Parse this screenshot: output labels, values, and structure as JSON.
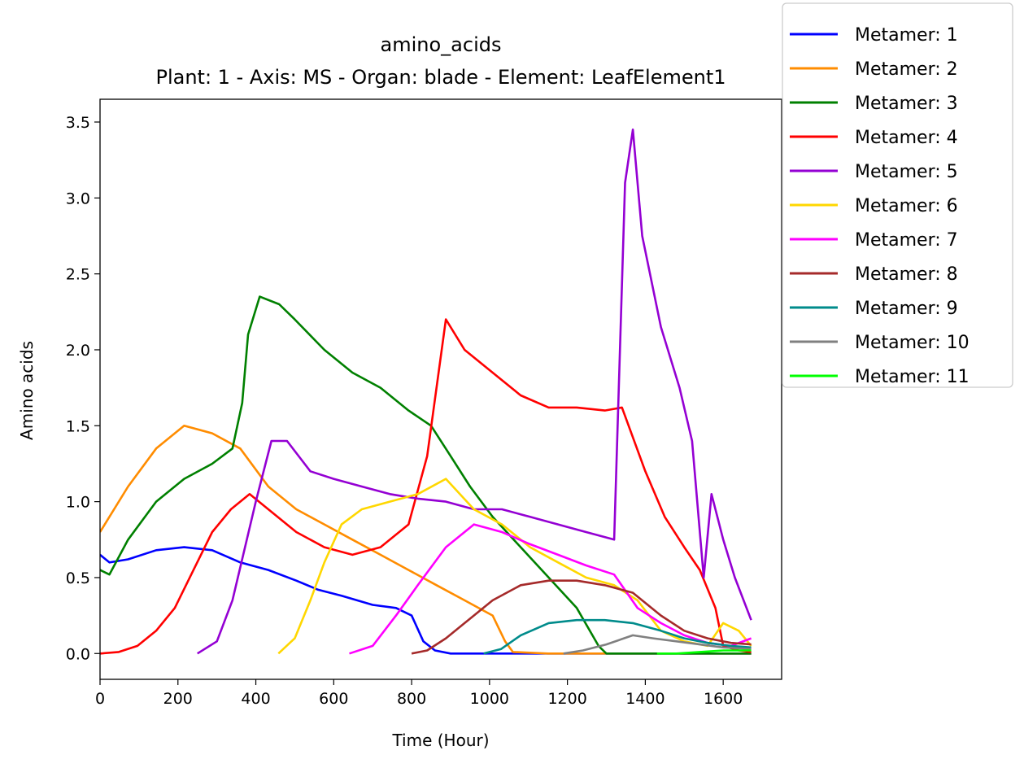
{
  "chart_data": {
    "type": "line",
    "title": "amino_acids",
    "subtitle": "Plant: 1 - Axis: MS - Organ: blade - Element: LeafElement1",
    "xlabel": "Time (Hour)",
    "ylabel": "Amino acids",
    "xlim": [
      0,
      1750
    ],
    "ylim": [
      -0.17,
      3.65
    ],
    "x_ticks": [
      0,
      200,
      400,
      600,
      800,
      1000,
      1200,
      1400,
      1600
    ],
    "y_ticks": [
      0.0,
      0.5,
      1.0,
      1.5,
      2.0,
      2.5,
      3.0,
      3.5
    ],
    "x_tick_labels": [
      "0",
      "200",
      "400",
      "600",
      "800",
      "1000",
      "1200",
      "1400",
      "1600"
    ],
    "y_tick_labels": [
      "0.0",
      "0.5",
      "1.0",
      "1.5",
      "2.0",
      "2.5",
      "3.0",
      "3.5"
    ],
    "grid": false,
    "legend_position": "outside-top-right",
    "series": [
      {
        "name": "Metamer: 1",
        "color": "#0000ff",
        "points": [
          [
            0,
            0.65
          ],
          [
            24,
            0.6
          ],
          [
            72,
            0.62
          ],
          [
            144,
            0.68
          ],
          [
            216,
            0.7
          ],
          [
            288,
            0.68
          ],
          [
            360,
            0.6
          ],
          [
            432,
            0.55
          ],
          [
            504,
            0.48
          ],
          [
            560,
            0.42
          ],
          [
            620,
            0.38
          ],
          [
            700,
            0.32
          ],
          [
            760,
            0.3
          ],
          [
            800,
            0.25
          ],
          [
            830,
            0.08
          ],
          [
            860,
            0.02
          ],
          [
            900,
            0.0
          ],
          [
            1000,
            0.0
          ],
          [
            1100,
            0.0
          ],
          [
            1300,
            0.0
          ],
          [
            1672,
            0.0
          ]
        ]
      },
      {
        "name": "Metamer: 2",
        "color": "#ff8c00",
        "points": [
          [
            0,
            0.8
          ],
          [
            24,
            0.9
          ],
          [
            72,
            1.1
          ],
          [
            144,
            1.35
          ],
          [
            216,
            1.5
          ],
          [
            288,
            1.45
          ],
          [
            360,
            1.35
          ],
          [
            432,
            1.1
          ],
          [
            504,
            0.95
          ],
          [
            576,
            0.85
          ],
          [
            648,
            0.75
          ],
          [
            720,
            0.65
          ],
          [
            792,
            0.55
          ],
          [
            864,
            0.45
          ],
          [
            936,
            0.35
          ],
          [
            1008,
            0.25
          ],
          [
            1040,
            0.08
          ],
          [
            1060,
            0.01
          ],
          [
            1150,
            0.0
          ],
          [
            1672,
            0.0
          ]
        ]
      },
      {
        "name": "Metamer: 3",
        "color": "#008000",
        "points": [
          [
            0,
            0.55
          ],
          [
            24,
            0.52
          ],
          [
            72,
            0.75
          ],
          [
            144,
            1.0
          ],
          [
            216,
            1.15
          ],
          [
            288,
            1.25
          ],
          [
            340,
            1.35
          ],
          [
            365,
            1.65
          ],
          [
            380,
            2.1
          ],
          [
            410,
            2.35
          ],
          [
            460,
            2.3
          ],
          [
            500,
            2.2
          ],
          [
            576,
            2.0
          ],
          [
            648,
            1.85
          ],
          [
            720,
            1.75
          ],
          [
            792,
            1.6
          ],
          [
            850,
            1.5
          ],
          [
            900,
            1.3
          ],
          [
            950,
            1.1
          ],
          [
            1008,
            0.9
          ],
          [
            1080,
            0.7
          ],
          [
            1152,
            0.5
          ],
          [
            1224,
            0.3
          ],
          [
            1280,
            0.05
          ],
          [
            1300,
            0.0
          ],
          [
            1672,
            0.0
          ]
        ]
      },
      {
        "name": "Metamer: 4",
        "color": "#ff0000",
        "points": [
          [
            0,
            0.0
          ],
          [
            48,
            0.01
          ],
          [
            96,
            0.05
          ],
          [
            144,
            0.15
          ],
          [
            192,
            0.3
          ],
          [
            240,
            0.55
          ],
          [
            288,
            0.8
          ],
          [
            336,
            0.95
          ],
          [
            384,
            1.05
          ],
          [
            432,
            0.95
          ],
          [
            504,
            0.8
          ],
          [
            576,
            0.7
          ],
          [
            648,
            0.65
          ],
          [
            720,
            0.7
          ],
          [
            792,
            0.85
          ],
          [
            840,
            1.3
          ],
          [
            888,
            2.2
          ],
          [
            936,
            2.0
          ],
          [
            1008,
            1.85
          ],
          [
            1080,
            1.7
          ],
          [
            1152,
            1.62
          ],
          [
            1224,
            1.62
          ],
          [
            1296,
            1.6
          ],
          [
            1340,
            1.62
          ],
          [
            1400,
            1.2
          ],
          [
            1450,
            0.9
          ],
          [
            1500,
            0.7
          ],
          [
            1540,
            0.55
          ],
          [
            1580,
            0.3
          ],
          [
            1600,
            0.05
          ],
          [
            1640,
            0.02
          ],
          [
            1672,
            0.01
          ]
        ]
      },
      {
        "name": "Metamer: 5",
        "color": "#9400d3",
        "points": [
          [
            250,
            0.0
          ],
          [
            300,
            0.08
          ],
          [
            340,
            0.35
          ],
          [
            400,
            1.0
          ],
          [
            440,
            1.4
          ],
          [
            480,
            1.4
          ],
          [
            540,
            1.2
          ],
          [
            600,
            1.15
          ],
          [
            672,
            1.1
          ],
          [
            744,
            1.05
          ],
          [
            816,
            1.02
          ],
          [
            888,
            1.0
          ],
          [
            960,
            0.95
          ],
          [
            1032,
            0.95
          ],
          [
            1104,
            0.9
          ],
          [
            1176,
            0.85
          ],
          [
            1248,
            0.8
          ],
          [
            1320,
            0.75
          ],
          [
            1348,
            3.1
          ],
          [
            1368,
            3.45
          ],
          [
            1392,
            2.75
          ],
          [
            1440,
            2.15
          ],
          [
            1488,
            1.75
          ],
          [
            1520,
            1.4
          ],
          [
            1550,
            0.5
          ],
          [
            1570,
            1.05
          ],
          [
            1600,
            0.75
          ],
          [
            1630,
            0.5
          ],
          [
            1672,
            0.22
          ]
        ]
      },
      {
        "name": "Metamer: 6",
        "color": "#ffd700",
        "points": [
          [
            458,
            0.0
          ],
          [
            500,
            0.1
          ],
          [
            540,
            0.35
          ],
          [
            576,
            0.6
          ],
          [
            620,
            0.85
          ],
          [
            672,
            0.95
          ],
          [
            744,
            1.0
          ],
          [
            816,
            1.05
          ],
          [
            888,
            1.15
          ],
          [
            960,
            0.95
          ],
          [
            1032,
            0.85
          ],
          [
            1104,
            0.7
          ],
          [
            1176,
            0.6
          ],
          [
            1248,
            0.5
          ],
          [
            1320,
            0.45
          ],
          [
            1380,
            0.35
          ],
          [
            1440,
            0.15
          ],
          [
            1500,
            0.08
          ],
          [
            1560,
            0.05
          ],
          [
            1600,
            0.2
          ],
          [
            1640,
            0.15
          ],
          [
            1672,
            0.05
          ]
        ]
      },
      {
        "name": "Metamer: 7",
        "color": "#ff00ff",
        "points": [
          [
            640,
            0.0
          ],
          [
            700,
            0.05
          ],
          [
            760,
            0.25
          ],
          [
            816,
            0.45
          ],
          [
            888,
            0.7
          ],
          [
            960,
            0.85
          ],
          [
            1032,
            0.8
          ],
          [
            1104,
            0.72
          ],
          [
            1176,
            0.65
          ],
          [
            1248,
            0.58
          ],
          [
            1320,
            0.52
          ],
          [
            1380,
            0.3
          ],
          [
            1440,
            0.2
          ],
          [
            1500,
            0.12
          ],
          [
            1560,
            0.07
          ],
          [
            1620,
            0.05
          ],
          [
            1672,
            0.1
          ]
        ]
      },
      {
        "name": "Metamer: 8",
        "color": "#a52a2a",
        "points": [
          [
            800,
            0.0
          ],
          [
            840,
            0.02
          ],
          [
            888,
            0.1
          ],
          [
            936,
            0.2
          ],
          [
            1008,
            0.35
          ],
          [
            1080,
            0.45
          ],
          [
            1152,
            0.48
          ],
          [
            1224,
            0.48
          ],
          [
            1296,
            0.45
          ],
          [
            1368,
            0.4
          ],
          [
            1440,
            0.25
          ],
          [
            1500,
            0.15
          ],
          [
            1560,
            0.1
          ],
          [
            1620,
            0.07
          ],
          [
            1672,
            0.06
          ]
        ]
      },
      {
        "name": "Metamer: 9",
        "color": "#008b8b",
        "points": [
          [
            985,
            0.0
          ],
          [
            1030,
            0.03
          ],
          [
            1080,
            0.12
          ],
          [
            1152,
            0.2
          ],
          [
            1224,
            0.22
          ],
          [
            1296,
            0.22
          ],
          [
            1368,
            0.2
          ],
          [
            1440,
            0.15
          ],
          [
            1500,
            0.1
          ],
          [
            1560,
            0.07
          ],
          [
            1620,
            0.05
          ],
          [
            1672,
            0.04
          ]
        ]
      },
      {
        "name": "Metamer: 10",
        "color": "#808080",
        "points": [
          [
            1190,
            0.0
          ],
          [
            1240,
            0.02
          ],
          [
            1300,
            0.06
          ],
          [
            1368,
            0.12
          ],
          [
            1420,
            0.1
          ],
          [
            1480,
            0.08
          ],
          [
            1540,
            0.06
          ],
          [
            1600,
            0.04
          ],
          [
            1672,
            0.03
          ]
        ]
      },
      {
        "name": "Metamer: 11",
        "color": "#00ff00",
        "points": [
          [
            1430,
            0.0
          ],
          [
            1480,
            0.0
          ],
          [
            1540,
            0.01
          ],
          [
            1600,
            0.02
          ],
          [
            1672,
            0.02
          ]
        ]
      }
    ]
  }
}
